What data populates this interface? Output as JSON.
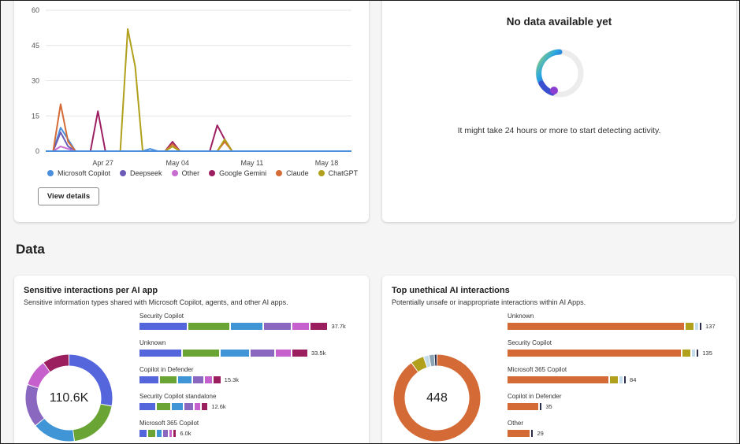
{
  "trend_card": {
    "view_details_label": "View details",
    "chart_data": {
      "type": "line",
      "y_ticks": [
        "60",
        "45",
        "30",
        "15",
        "0"
      ],
      "x_ticks": [
        "Apr 27",
        "May 04",
        "May 11",
        "May 18"
      ],
      "ylim": [
        0,
        60
      ],
      "x_count": 42,
      "x_tick_positions": [
        10,
        20,
        30,
        40
      ],
      "series": [
        {
          "name": "Microsoft Copilot",
          "color": "#4b8fdc",
          "values": [
            0,
            0,
            10,
            5,
            0,
            0,
            0,
            0,
            0,
            0,
            0,
            0,
            0,
            0,
            1,
            0,
            0,
            0,
            0,
            0,
            0,
            0,
            0,
            0,
            0,
            0,
            0,
            0,
            0,
            0,
            0,
            0,
            0,
            0,
            0,
            0,
            0,
            0,
            0,
            0,
            0,
            0
          ]
        },
        {
          "name": "Deepseek",
          "color": "#6b5bb5",
          "values": [
            0,
            0,
            8,
            2,
            0,
            0,
            0,
            0,
            0,
            0,
            0,
            0,
            0,
            0,
            0,
            0,
            0,
            0,
            0,
            0,
            0,
            0,
            0,
            0,
            0,
            0,
            0,
            0,
            0,
            0,
            0,
            0,
            0,
            0,
            0,
            0,
            0,
            0,
            0,
            0,
            0,
            0
          ]
        },
        {
          "name": "Other",
          "color": "#c86dd0",
          "values": [
            0,
            0,
            2,
            1,
            0,
            0,
            0,
            0,
            0,
            0,
            0,
            0,
            0,
            0,
            0,
            0,
            0,
            0,
            0,
            0,
            0,
            0,
            0,
            0,
            0,
            0,
            0,
            0,
            0,
            0,
            0,
            0,
            0,
            0,
            0,
            0,
            0,
            0,
            0,
            0,
            0,
            0
          ]
        },
        {
          "name": "Google Gemini",
          "color": "#9c1f62",
          "values": [
            0,
            0,
            0,
            0,
            0,
            0,
            0,
            17,
            0,
            0,
            0,
            0,
            0,
            0,
            0,
            0,
            0,
            4,
            0,
            0,
            0,
            0,
            0,
            11,
            5,
            0,
            0,
            0,
            0,
            0,
            0,
            0,
            0,
            0,
            0,
            0,
            0,
            0,
            0,
            0,
            0,
            0
          ]
        },
        {
          "name": "Claude",
          "color": "#d46b37",
          "values": [
            0,
            0,
            20,
            4,
            0,
            0,
            0,
            0,
            0,
            0,
            0,
            0,
            0,
            0,
            0,
            0,
            0,
            3,
            0,
            0,
            0,
            0,
            0,
            0,
            4,
            0,
            0,
            0,
            0,
            0,
            0,
            0,
            0,
            0,
            0,
            0,
            0,
            0,
            0,
            0,
            0,
            0
          ]
        },
        {
          "name": "ChatGPT",
          "color": "#b0a01c",
          "values": [
            0,
            0,
            0,
            0,
            0,
            0,
            0,
            0,
            0,
            0,
            0,
            52,
            36,
            0,
            0,
            0,
            0,
            2,
            0,
            0,
            0,
            0,
            0,
            0,
            5,
            0,
            0,
            0,
            0,
            0,
            0,
            0,
            0,
            0,
            0,
            0,
            0,
            0,
            0,
            0,
            0,
            0
          ]
        }
      ]
    }
  },
  "nodata_card": {
    "title": "No data available yet",
    "message": "It might take 24 hours or more to start detecting activity."
  },
  "section": {
    "title": "Data"
  },
  "sensitive_card": {
    "title": "Sensitive interactions per AI app",
    "subtitle": "Sensitive information types shared with Microsoft Copilot, agents, and other AI apps.",
    "total": "110.6K",
    "chart_data": {
      "type": "bar",
      "orientation": "horizontal-stacked",
      "categories": [
        "Security Copilot",
        "Unknown",
        "Copilot in Defender",
        "Security Copilot standalone",
        "Microsoft 365 Copilot"
      ],
      "value_labels": [
        "37.7k",
        "33.5k",
        "15.3k",
        "12.6k",
        "6.0k"
      ],
      "values": [
        37.7,
        33.5,
        15.3,
        12.6,
        6.0
      ],
      "segment_colors": [
        "#5566dd",
        "#6aa434",
        "#3f95d6",
        "#8b68c0",
        "#c560cc",
        "#9b1e5f"
      ],
      "segment_shares": [
        0.25,
        0.22,
        0.17,
        0.14,
        0.09,
        0.09
      ],
      "donut_shares": [
        0.28,
        0.2,
        0.16,
        0.16,
        0.1,
        0.1
      ],
      "donut_colors": [
        "#5566dd",
        "#6aa434",
        "#3f95d6",
        "#8b68c0",
        "#c560cc",
        "#9b1e5f"
      ]
    }
  },
  "unethical_card": {
    "title": "Top unethical AI interactions",
    "subtitle": "Potentially unsafe or inappropriate interactions within AI Apps.",
    "total": "448",
    "chart_data": {
      "type": "bar",
      "orientation": "horizontal-stacked",
      "categories": [
        "Unknown",
        "Security Copilot",
        "Microsoft 365 Copilot",
        "Copilot in Defender",
        "Other"
      ],
      "value_labels": [
        "137",
        "135",
        "84",
        "35",
        "29"
      ],
      "values": [
        137,
        135,
        84,
        35,
        29
      ],
      "segment_colors": [
        "#d46b37",
        "#b0a01c",
        "#c5dcea",
        "#2b2b4a"
      ],
      "donut_shares": [
        0.9,
        0.05,
        0.02,
        0.02,
        0.01
      ],
      "donut_colors": [
        "#d46b37",
        "#b0a01c",
        "#c5dcea",
        "#8aa4b5",
        "#2b2b4a"
      ]
    }
  }
}
